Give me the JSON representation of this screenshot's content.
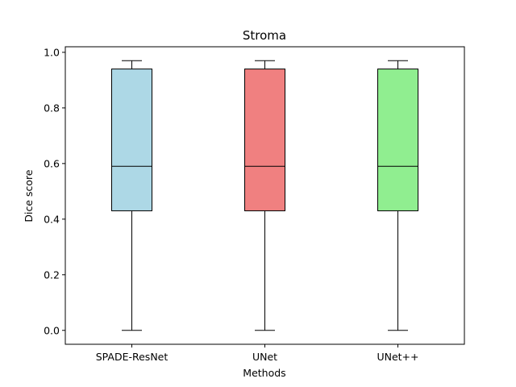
{
  "chart_data": {
    "type": "box",
    "title": "Stroma",
    "xlabel": "Methods",
    "ylabel": "Dice score",
    "ylim": [
      -0.05,
      1.02
    ],
    "yticks": [
      "0.0",
      "0.2",
      "0.4",
      "0.6",
      "0.8",
      "1.0"
    ],
    "grid": false,
    "categories": [
      "SPADE-ResNet",
      "UNet",
      "UNet++"
    ],
    "boxes": [
      {
        "name": "SPADE-ResNet",
        "whisker_low": 0.0,
        "q1": 0.43,
        "median": 0.59,
        "q3": 0.94,
        "whisker_high": 0.97,
        "color": "#add8e6"
      },
      {
        "name": "UNet",
        "whisker_low": 0.0,
        "q1": 0.43,
        "median": 0.59,
        "q3": 0.94,
        "whisker_high": 0.97,
        "color": "#f08080"
      },
      {
        "name": "UNet++",
        "whisker_low": 0.0,
        "q1": 0.43,
        "median": 0.59,
        "q3": 0.94,
        "whisker_high": 0.97,
        "color": "#90ee90"
      }
    ]
  }
}
